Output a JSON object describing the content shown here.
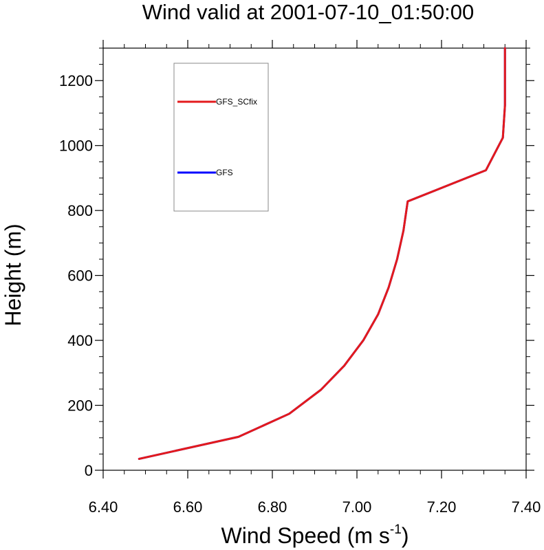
{
  "chart_data": {
    "type": "line",
    "title": "Wind valid at 2001-07-10_01:50:00",
    "xlabel": "Wind Speed (m s",
    "xlabel_sup": "-1",
    "xlabel_tail": ")",
    "ylabel": "Height (m)",
    "xlim": [
      6.4,
      7.4
    ],
    "ylim": [
      0,
      1300
    ],
    "xticks": [
      6.4,
      6.6,
      6.8,
      7.0,
      7.2,
      7.4
    ],
    "xtick_labels": [
      "6.40",
      "6.60",
      "6.80",
      "7.00",
      "7.20",
      "7.40"
    ],
    "yticks": [
      0,
      200,
      400,
      600,
      800,
      1000,
      1200
    ],
    "ytick_labels": [
      "0",
      "200",
      "400",
      "600",
      "800",
      "1000",
      "1200"
    ],
    "grid": false,
    "legend_placement": "top-left",
    "series": [
      {
        "name": "GFS_SCfix",
        "color": "#e31a1c",
        "x": [
          6.485,
          6.72,
          6.84,
          6.915,
          6.97,
          7.015,
          7.05,
          7.075,
          7.095,
          7.11,
          7.12,
          7.305,
          7.345,
          7.35,
          7.35
        ],
        "y": [
          35,
          103,
          174,
          248,
          322,
          400,
          480,
          563,
          650,
          738,
          828,
          924,
          1024,
          1124,
          1300
        ]
      },
      {
        "name": "GFS",
        "color": "#0000ff",
        "x": [
          6.485,
          6.72,
          6.84,
          6.915,
          6.97,
          7.015,
          7.05,
          7.075,
          7.095,
          7.11,
          7.12,
          7.305,
          7.345,
          7.35,
          7.35
        ],
        "y": [
          35,
          103,
          174,
          248,
          322,
          400,
          480,
          563,
          650,
          738,
          828,
          924,
          1024,
          1124,
          1300
        ]
      }
    ]
  }
}
